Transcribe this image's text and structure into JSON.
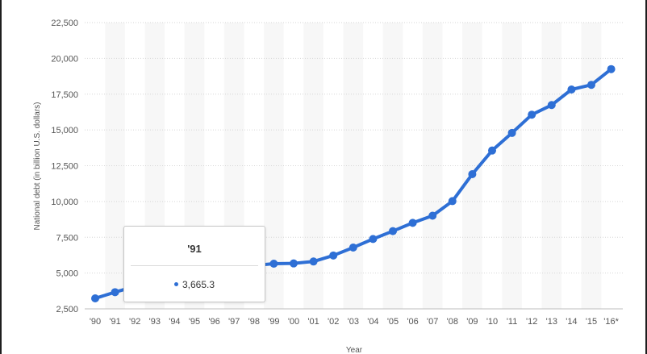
{
  "chart_data": {
    "type": "line",
    "xlabel": "Year",
    "ylabel": "National debt (in billion U.S. dollars)",
    "categories": [
      "'90",
      "'91",
      "'92",
      "'93",
      "'94",
      "'95",
      "'96",
      "'97",
      "'98",
      "'99",
      "'00",
      "'01",
      "'02",
      "'03",
      "'04",
      "'05",
      "'06",
      "'07",
      "'08",
      "'09",
      "'10",
      "'11",
      "'12",
      "'13",
      "'14",
      "'15",
      "'16*"
    ],
    "y_ticks": [
      "2,500",
      "5,000",
      "7,500",
      "10,000",
      "12,500",
      "15,000",
      "17,500",
      "20,000",
      "22,500"
    ],
    "ylim": [
      2500,
      22500
    ],
    "grid": "horizontal dotted, alternating column bands",
    "series": [
      {
        "color": "#2e6fd5",
        "values": [
          3233.3,
          3665.3,
          4064.6,
          4411.5,
          4692.7,
          4974.0,
          5224.8,
          5413.1,
          5526.2,
          5656.3,
          5674.2,
          5807.5,
          6228.2,
          6783.2,
          7379.1,
          7932.7,
          8507.0,
          9007.7,
          10024.7,
          11909.8,
          13561.6,
          14790.3,
          16066.2,
          16738.2,
          17824.1,
          18150.6,
          19250.0
        ]
      }
    ]
  },
  "tooltip": {
    "title": "'91",
    "value": "3,665.3",
    "color": "#2e6fd5"
  }
}
